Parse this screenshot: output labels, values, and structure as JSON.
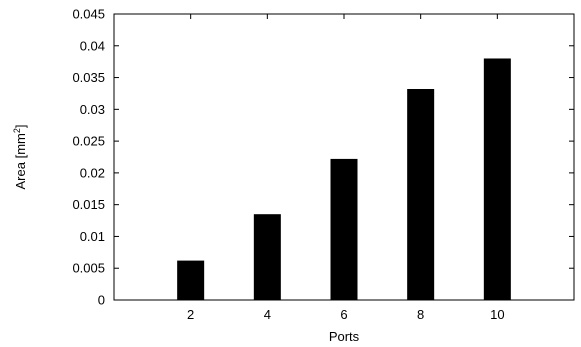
{
  "chart_data": {
    "type": "bar",
    "categories": [
      "2",
      "4",
      "6",
      "8",
      "10"
    ],
    "values": [
      0.0062,
      0.0135,
      0.0222,
      0.0332,
      0.038
    ],
    "x": [
      2,
      4,
      6,
      8,
      10
    ],
    "xlim": [
      0,
      12
    ],
    "ylim": [
      0,
      0.045
    ],
    "yticks": [
      0,
      0.005,
      0.01,
      0.015,
      0.02,
      0.025,
      0.03,
      0.035,
      0.04,
      0.045
    ],
    "ytick_labels": [
      "0",
      "0.005",
      "0.01",
      "0.015",
      "0.02",
      "0.025",
      "0.03",
      "0.035",
      "0.04",
      "0.045"
    ],
    "xlabel": "Ports",
    "ylabel_text": "Area [mm",
    "ylabel_sup": "2",
    "ylabel_close": "]",
    "grid": false,
    "bar_color": "#000000"
  }
}
